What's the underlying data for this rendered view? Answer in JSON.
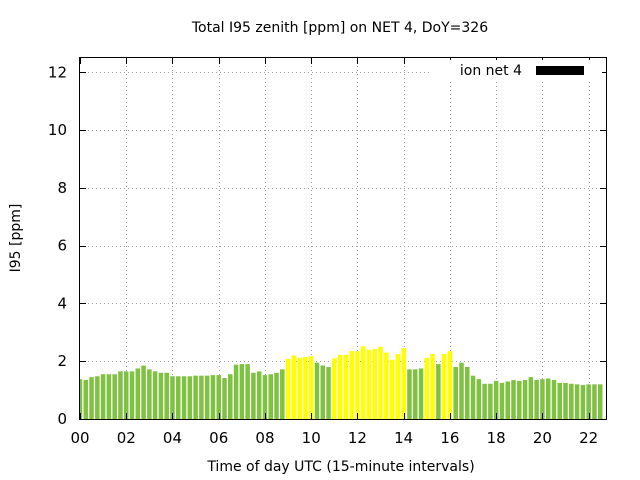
{
  "chart_data": {
    "type": "bar",
    "title": "Total I95 zenith [ppm] on NET 4, DoY=326",
    "xlabel": "Time of day UTC (15-minute intervals)",
    "ylabel": "I95 [ppm]",
    "ylim": [
      0,
      12.5
    ],
    "xlim": [
      0,
      22.75
    ],
    "yticks": [
      0,
      2,
      4,
      6,
      8,
      10,
      12
    ],
    "xticks": [
      "00",
      "02",
      "04",
      "06",
      "08",
      "10",
      "12",
      "14",
      "16",
      "18",
      "20",
      "22"
    ],
    "grid": true,
    "legend": {
      "label": "ion net 4",
      "color": "#000000",
      "position": "top-right"
    },
    "bar_colors": {
      "normal": "#7fc241",
      "elevated": "#ffff00"
    },
    "bar_interval_hours": 0.25,
    "values": [
      1.38,
      1.35,
      1.45,
      1.48,
      1.55,
      1.55,
      1.55,
      1.65,
      1.65,
      1.65,
      1.75,
      1.85,
      1.72,
      1.65,
      1.6,
      1.6,
      1.48,
      1.48,
      1.48,
      1.48,
      1.5,
      1.5,
      1.5,
      1.52,
      1.52,
      1.42,
      1.55,
      1.88,
      1.9,
      1.9,
      1.6,
      1.65,
      1.52,
      1.55,
      1.6,
      1.72,
      2.08,
      2.2,
      2.12,
      2.15,
      2.17,
      1.95,
      1.85,
      1.8,
      2.1,
      2.22,
      2.22,
      2.35,
      2.35,
      2.52,
      2.4,
      2.42,
      2.5,
      2.3,
      2.05,
      2.25,
      2.45,
      1.72,
      1.72,
      1.75,
      2.12,
      2.25,
      1.9,
      2.25,
      2.35,
      1.8,
      1.95,
      1.8,
      1.5,
      1.38,
      1.22,
      1.22,
      1.32,
      1.25,
      1.3,
      1.35,
      1.32,
      1.35,
      1.45,
      1.35,
      1.38,
      1.4,
      1.35,
      1.25,
      1.25,
      1.22,
      1.2,
      1.18,
      1.2,
      1.2,
      1.2
    ],
    "status": [
      "n",
      "n",
      "n",
      "n",
      "n",
      "n",
      "n",
      "n",
      "n",
      "n",
      "n",
      "n",
      "n",
      "n",
      "n",
      "n",
      "n",
      "n",
      "n",
      "n",
      "n",
      "n",
      "n",
      "n",
      "n",
      "n",
      "n",
      "n",
      "n",
      "n",
      "n",
      "n",
      "n",
      "n",
      "n",
      "n",
      "e",
      "e",
      "e",
      "e",
      "e",
      "n",
      "n",
      "n",
      "e",
      "e",
      "e",
      "e",
      "e",
      "e",
      "e",
      "e",
      "e",
      "e",
      "e",
      "e",
      "e",
      "n",
      "n",
      "n",
      "e",
      "e",
      "n",
      "e",
      "e",
      "n",
      "n",
      "n",
      "n",
      "n",
      "n",
      "n",
      "n",
      "n",
      "n",
      "n",
      "n",
      "n",
      "n",
      "n",
      "n",
      "n",
      "n",
      "n",
      "n",
      "n",
      "n",
      "n",
      "n",
      "n",
      "n"
    ]
  }
}
